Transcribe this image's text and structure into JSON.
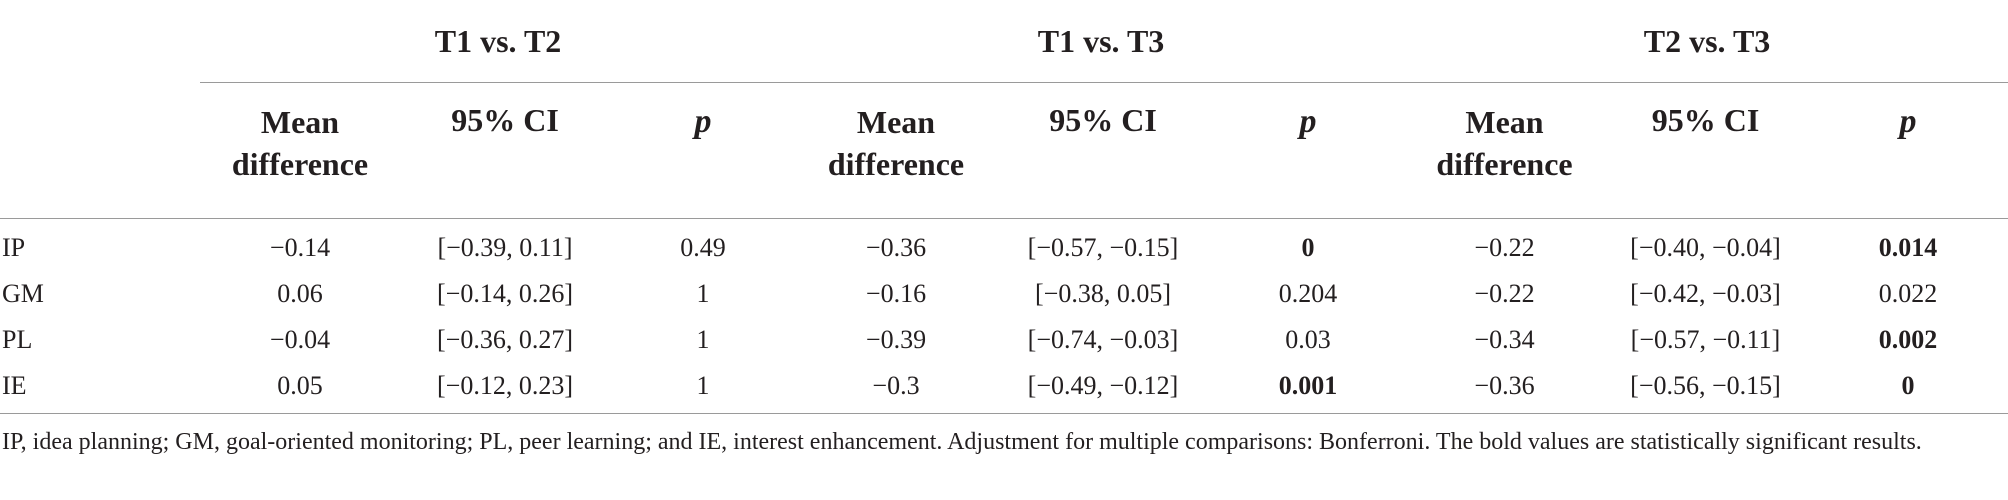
{
  "groups": [
    "T1 vs. T2",
    "T1 vs. T3",
    "T2 vs. T3"
  ],
  "subheaders": {
    "mean_line1": "Mean",
    "mean_line2": "difference",
    "ci": "95% CI",
    "p": "p"
  },
  "rows": [
    {
      "label": "IP",
      "cells": [
        {
          "v": "−0.14"
        },
        {
          "v": "[−0.39, 0.11]"
        },
        {
          "v": "0.49"
        },
        {
          "v": "−0.36"
        },
        {
          "v": "[−0.57, −0.15]"
        },
        {
          "v": "0",
          "bold": true
        },
        {
          "v": "−0.22"
        },
        {
          "v": "[−0.40, −0.04]"
        },
        {
          "v": "0.014",
          "bold": true
        }
      ]
    },
    {
      "label": "GM",
      "cells": [
        {
          "v": "0.06"
        },
        {
          "v": "[−0.14, 0.26]"
        },
        {
          "v": "1"
        },
        {
          "v": "−0.16"
        },
        {
          "v": "[−0.38, 0.05]"
        },
        {
          "v": "0.204"
        },
        {
          "v": "−0.22"
        },
        {
          "v": "[−0.42, −0.03]"
        },
        {
          "v": "0.022"
        }
      ]
    },
    {
      "label": "PL",
      "cells": [
        {
          "v": "−0.04"
        },
        {
          "v": "[−0.36, 0.27]"
        },
        {
          "v": "1"
        },
        {
          "v": "−0.39"
        },
        {
          "v": "[−0.74, −0.03]"
        },
        {
          "v": "0.03"
        },
        {
          "v": "−0.34"
        },
        {
          "v": "[−0.57, −0.11]"
        },
        {
          "v": "0.002",
          "bold": true
        }
      ]
    },
    {
      "label": "IE",
      "cells": [
        {
          "v": "0.05"
        },
        {
          "v": "[−0.12, 0.23]"
        },
        {
          "v": "1"
        },
        {
          "v": "−0.3"
        },
        {
          "v": "[−0.49, −0.12]"
        },
        {
          "v": "0.001",
          "bold": true
        },
        {
          "v": "−0.36"
        },
        {
          "v": "[−0.56, −0.15]"
        },
        {
          "v": "0",
          "bold": true
        }
      ]
    }
  ],
  "footnote": "IP, idea planning; GM, goal-oriented monitoring; PL, peer learning; and IE, interest enhancement. Adjustment for multiple comparisons: Bonferroni. The bold values are statistically significant results."
}
